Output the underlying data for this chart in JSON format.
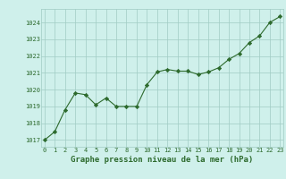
{
  "x": [
    0,
    1,
    2,
    3,
    4,
    5,
    6,
    7,
    8,
    9,
    10,
    11,
    12,
    13,
    14,
    15,
    16,
    17,
    18,
    19,
    20,
    21,
    22,
    23
  ],
  "y": [
    1017.0,
    1017.5,
    1018.8,
    1019.8,
    1019.7,
    1019.1,
    1019.5,
    1019.0,
    1019.0,
    1019.0,
    1020.3,
    1021.05,
    1021.2,
    1021.1,
    1021.1,
    1020.9,
    1021.05,
    1021.3,
    1021.8,
    1022.15,
    1022.8,
    1023.2,
    1024.0,
    1024.35
  ],
  "line_color": "#2d6a2d",
  "marker": "D",
  "marker_size": 2.2,
  "bg_color": "#cff0eb",
  "grid_color": "#a0ccc4",
  "xlabel": "Graphe pression niveau de la mer (hPa)",
  "xlabel_fontsize": 6.5,
  "tick_fontsize": 5.0,
  "yticks": [
    1017,
    1018,
    1019,
    1020,
    1021,
    1022,
    1023,
    1024
  ],
  "xticks": [
    0,
    1,
    2,
    3,
    4,
    5,
    6,
    7,
    8,
    9,
    10,
    11,
    12,
    13,
    14,
    15,
    16,
    17,
    18,
    19,
    20,
    21,
    22,
    23
  ],
  "ylim": [
    1016.6,
    1024.8
  ],
  "xlim": [
    -0.3,
    23.3
  ],
  "linewidth": 0.8
}
